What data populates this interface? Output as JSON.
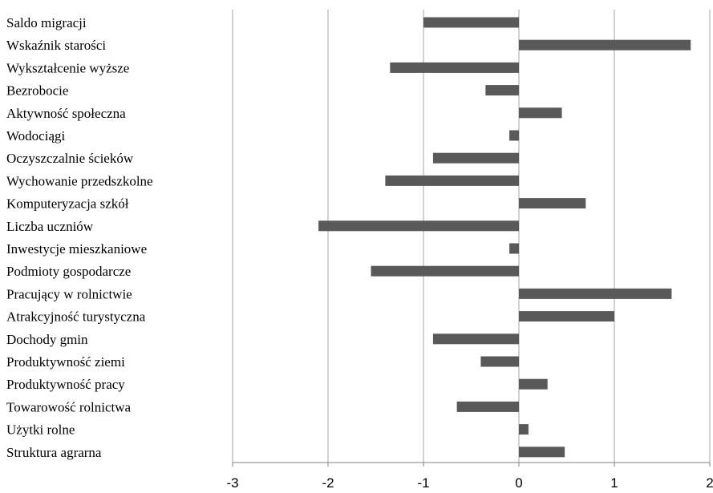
{
  "chart_data": {
    "type": "bar",
    "orientation": "horizontal",
    "categories": [
      "Saldo migracji",
      "Wskaźnik starości",
      "Wykształcenie wyższe",
      "Bezrobocie",
      "Aktywność społeczna",
      "Wodociągi",
      "Oczyszczalnie ścieków",
      "Wychowanie przedszkolne",
      "Komputeryzacja szkół",
      "Liczba uczniów",
      "Inwestycje mieszkaniowe",
      "Podmioty gospodarcze",
      "Pracujący w rolnictwie",
      "Atrakcyjność turystyczna",
      "Dochody gmin",
      "Produktywność ziemi",
      "Produktywność pracy",
      "Towarowość rolnictwa",
      "Użytki rolne",
      "Struktura agrarna"
    ],
    "values": [
      -1.0,
      1.8,
      -1.35,
      -0.35,
      0.45,
      -0.1,
      -0.9,
      -1.4,
      0.7,
      -2.1,
      -0.1,
      -1.55,
      1.6,
      1.0,
      -0.9,
      -0.4,
      0.3,
      -0.65,
      0.1,
      0.48
    ],
    "xlim": [
      -3,
      2
    ],
    "xticks": [
      -3,
      -2,
      -1,
      0,
      1,
      2
    ],
    "tick_labels": [
      "-3",
      "-2",
      "-1",
      "0",
      "1",
      "2"
    ],
    "grid": true,
    "legend": "none",
    "bar_color": "#595959",
    "grid_color": "#a6a6a6",
    "title": "",
    "xlabel": "",
    "ylabel": ""
  }
}
